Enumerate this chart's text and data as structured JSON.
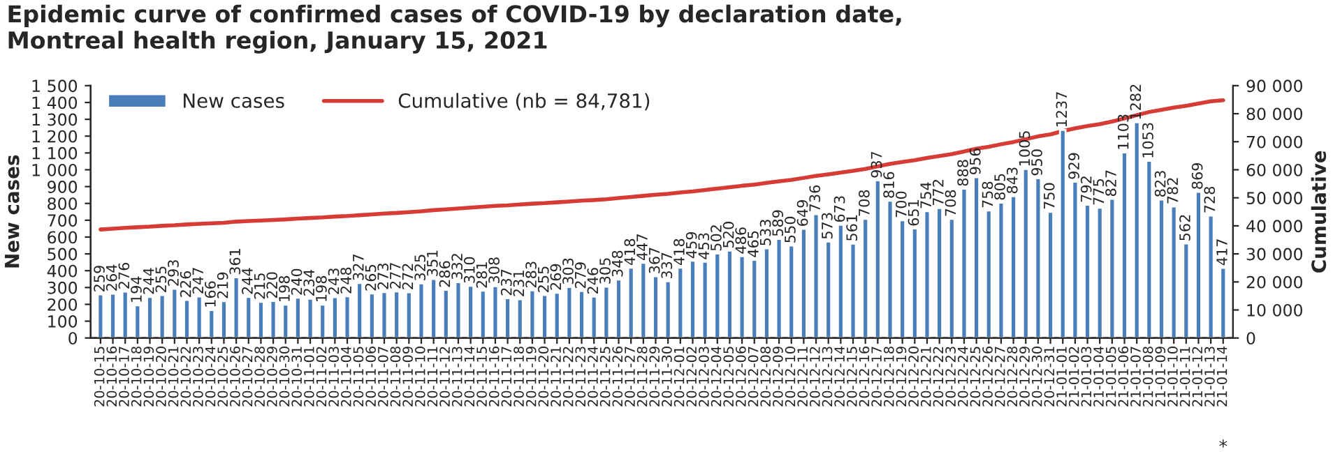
{
  "chart_data": {
    "type": "bar",
    "title": "Epidemic curve of confirmed cases of COVID-19 by declaration date,\nMontreal health region, January 15, 2021",
    "ylabel": "New cases",
    "y2label": "Cumulative",
    "categories": [
      "20-10-15",
      "20-10-16",
      "20-10-17",
      "20-10-18",
      "20-10-19",
      "20-10-20",
      "20-10-21",
      "20-10-22",
      "20-10-23",
      "20-10-24",
      "20-10-25",
      "20-10-26",
      "20-10-27",
      "20-10-28",
      "20-10-29",
      "20-10-30",
      "20-10-31",
      "20-11-01",
      "20-11-02",
      "20-11-03",
      "20-11-04",
      "20-11-05",
      "20-11-06",
      "20-11-07",
      "20-11-08",
      "20-11-09",
      "20-11-10",
      "20-11-11",
      "20-11-12",
      "20-11-13",
      "20-11-14",
      "20-11-15",
      "20-11-16",
      "20-11-17",
      "20-11-18",
      "20-11-19",
      "20-11-20",
      "20-11-21",
      "20-11-22",
      "20-11-23",
      "20-11-24",
      "20-11-25",
      "20-11-26",
      "20-11-27",
      "20-11-28",
      "20-11-29",
      "20-11-30",
      "20-12-01",
      "20-12-02",
      "20-12-03",
      "20-12-04",
      "20-12-05",
      "20-12-06",
      "20-12-07",
      "20-12-08",
      "20-12-09",
      "20-12-10",
      "20-12-11",
      "20-12-12",
      "20-12-13",
      "20-12-14",
      "20-12-15",
      "20-12-16",
      "20-12-17",
      "20-12-18",
      "20-12-19",
      "20-12-20",
      "20-12-21",
      "20-12-22",
      "20-12-23",
      "20-12-24",
      "20-12-25",
      "20-12-26",
      "20-12-27",
      "20-12-28",
      "20-12-29",
      "20-12-30",
      "20-12-31",
      "21-01-01",
      "21-01-02",
      "21-01-03",
      "21-01-04",
      "21-01-05",
      "21-01-06",
      "21-01-07",
      "21-01-08",
      "21-01-09",
      "21-01-10",
      "21-01-11",
      "21-01-12",
      "21-01-13",
      "21-01-14"
    ],
    "series": [
      {
        "name": "New cases",
        "color": "#4a7ebb",
        "data_labels": true,
        "values": [
          259,
          264,
          276,
          194,
          244,
          255,
          293,
          226,
          247,
          166,
          219,
          361,
          244,
          215,
          220,
          198,
          240,
          234,
          198,
          243,
          248,
          327,
          265,
          273,
          277,
          272,
          325,
          351,
          286,
          332,
          310,
          281,
          308,
          237,
          231,
          283,
          255,
          269,
          303,
          279,
          246,
          305,
          348,
          418,
          447,
          367,
          337,
          418,
          459,
          453,
          502,
          520,
          486,
          465,
          533,
          589,
          550,
          649,
          736,
          573,
          673,
          561,
          708,
          937,
          816,
          700,
          651,
          754,
          772,
          708,
          888,
          956,
          758,
          805,
          843,
          1005,
          950,
          750,
          1237,
          929,
          792,
          775,
          827,
          1103,
          1282,
          1053,
          823,
          782,
          562,
          869,
          728,
          417
        ]
      },
      {
        "name": "Cumulative (nb = 84,781)",
        "type": "line",
        "axis": "y2",
        "color": "#d63b36",
        "marker": "none",
        "line_style": "solid",
        "values": [
          38700,
          39000,
          39300,
          39500,
          39700,
          40000,
          40200,
          40500,
          40700,
          40900,
          41100,
          41500,
          41700,
          41900,
          42100,
          42300,
          42600,
          42800,
          43000,
          43300,
          43500,
          43800,
          44100,
          44400,
          44600,
          44900,
          45200,
          45600,
          45900,
          46200,
          46500,
          46800,
          47100,
          47300,
          47600,
          47900,
          48100,
          48400,
          48700,
          49000,
          49200,
          49500,
          49900,
          50300,
          50700,
          51100,
          51400,
          51900,
          52300,
          52800,
          53300,
          53800,
          54300,
          54700,
          55300,
          55900,
          56400,
          57100,
          57800,
          58400,
          59000,
          59600,
          60300,
          61200,
          62100,
          62800,
          63400,
          64200,
          64900,
          65600,
          66500,
          67500,
          68200,
          69100,
          69900,
          70900,
          71900,
          72600,
          73800,
          74800,
          75600,
          76300,
          77200,
          78300,
          79500,
          80600,
          81400,
          82200,
          82800,
          83600,
          84400,
          84800
        ]
      }
    ],
    "ylim": [
      0,
      1500
    ],
    "yticks": [
      0,
      100,
      200,
      300,
      400,
      500,
      600,
      700,
      800,
      900,
      {
        "value": 1000,
        "label": "1 000"
      },
      {
        "value": 1100,
        "label": "1 100"
      },
      {
        "value": 1200,
        "label": "1 200"
      },
      {
        "value": 1300,
        "label": "1 300"
      },
      {
        "value": 1400,
        "label": "1 400"
      },
      {
        "value": 1500,
        "label": "1 500"
      }
    ],
    "y2lim": [
      0,
      90000
    ],
    "y2ticks": [
      0,
      {
        "value": 10000,
        "label": "10 000"
      },
      {
        "value": 20000,
        "label": "20 000"
      },
      {
        "value": 30000,
        "label": "30 000"
      },
      {
        "value": 40000,
        "label": "40 000"
      },
      {
        "value": 50000,
        "label": "50 000"
      },
      {
        "value": 60000,
        "label": "60 000"
      },
      {
        "value": 70000,
        "label": "70 000"
      },
      {
        "value": 80000,
        "label": "80 000"
      },
      {
        "value": 90000,
        "label": "90 000"
      }
    ],
    "grid": false,
    "legend": "top left",
    "annotations": [
      "*"
    ]
  }
}
